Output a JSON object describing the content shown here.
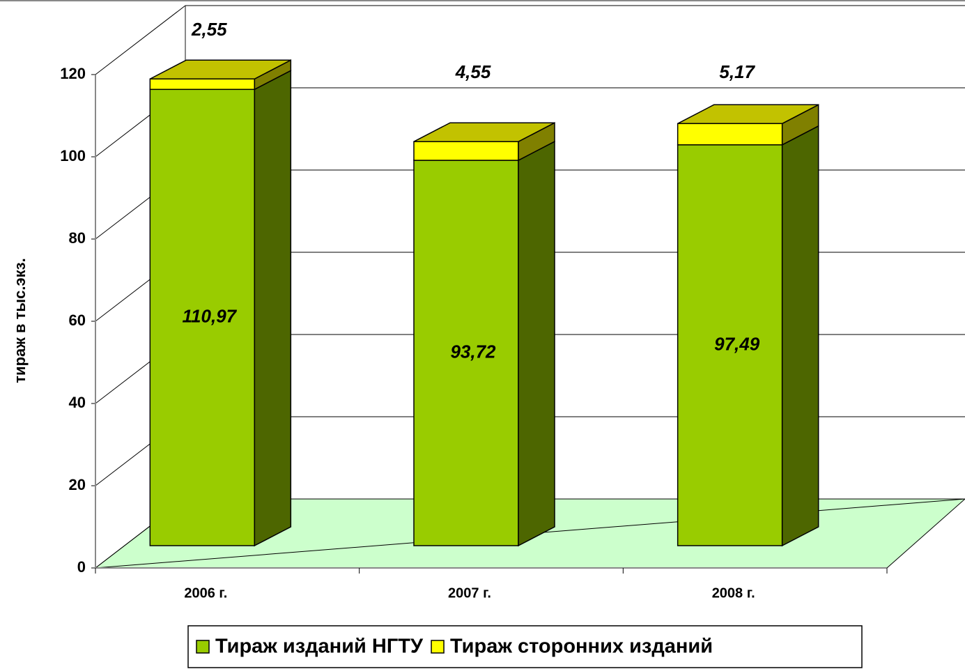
{
  "chart_data": {
    "type": "bar3d_stacked",
    "categories": [
      "2006 г.",
      "2007 г.",
      "2008 г."
    ],
    "series": [
      {
        "name": "Тираж изданий НГТУ",
        "color": "#99cc00",
        "values": [
          110.97,
          93.72,
          97.49
        ],
        "value_labels": [
          "110,97",
          "93,72",
          "97,49"
        ]
      },
      {
        "name": "Тираж сторонних изданий",
        "color": "#ffff00",
        "values": [
          2.55,
          4.55,
          5.17
        ],
        "value_labels": [
          "2,55",
          "4,55",
          "5,17"
        ]
      }
    ],
    "y_label": "тираж в тыс.экз.",
    "ylim": [
      0,
      120
    ],
    "yticks": [
      0,
      20,
      40,
      60,
      80,
      100,
      120
    ],
    "grid": true,
    "legend": "bottom"
  }
}
